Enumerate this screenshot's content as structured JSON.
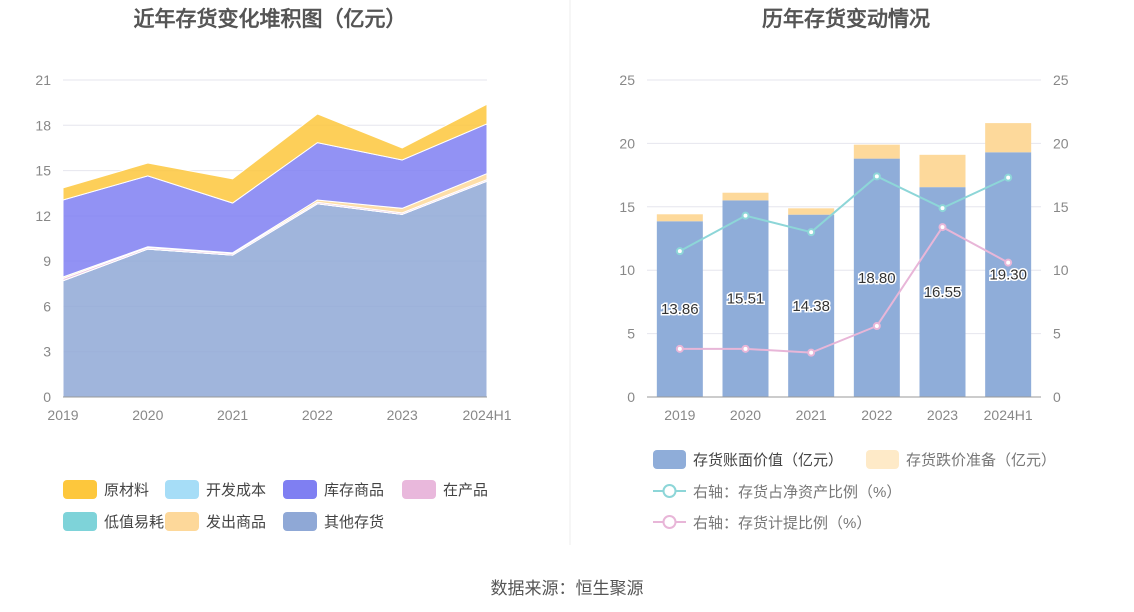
{
  "source": "数据来源：恒生聚源",
  "chart_data": [
    {
      "type": "area",
      "stacked": true,
      "title": "近年存货变化堆积图（亿元）",
      "categories": [
        "2019",
        "2020",
        "2021",
        "2022",
        "2023",
        "2024H1"
      ],
      "ylim": [
        0,
        21
      ],
      "yticks": [
        0,
        3,
        6,
        9,
        12,
        15,
        18,
        21
      ],
      "grid": true,
      "legend_position": "bottom",
      "series": [
        {
          "name": "其他存货",
          "color": "#8fa8d6",
          "values": [
            7.7,
            9.8,
            9.4,
            12.8,
            12.1,
            14.3
          ]
        },
        {
          "name": "低值易耗品",
          "color": "#7ed3d9",
          "values": [
            0.0,
            0.0,
            0.0,
            0.0,
            0.0,
            0.0
          ]
        },
        {
          "name": "开发成本",
          "color": "#a6ddf7",
          "values": [
            0.0,
            0.0,
            0.0,
            0.0,
            0.0,
            0.0
          ]
        },
        {
          "name": "在产品",
          "color": "#e9b8dc",
          "values": [
            0.15,
            0.1,
            0.1,
            0.1,
            0.1,
            0.1
          ]
        },
        {
          "name": "发出商品",
          "color": "#fdd89a",
          "values": [
            0.1,
            0.05,
            0.05,
            0.15,
            0.3,
            0.4
          ]
        },
        {
          "name": "库存商品",
          "color": "#7f7ff2",
          "values": [
            5.1,
            4.7,
            3.3,
            3.8,
            3.2,
            3.3
          ]
        },
        {
          "name": "原材料",
          "color": "#fdc73c",
          "values": [
            0.8,
            0.85,
            1.6,
            1.9,
            0.8,
            1.3
          ]
        }
      ],
      "legend_order": [
        "原材料",
        "开发成本",
        "库存商品",
        "在产品",
        "低值易耗品",
        "发出商品",
        "其他存货"
      ]
    },
    {
      "type": "bar",
      "stacked": true,
      "title": "历年存货变动情况",
      "categories": [
        "2019",
        "2020",
        "2021",
        "2022",
        "2023",
        "2024H1"
      ],
      "ylim": [
        0,
        25
      ],
      "yticks": [
        0,
        5,
        10,
        15,
        20,
        25
      ],
      "y2lim": [
        0,
        25
      ],
      "y2ticks": [
        0,
        5,
        10,
        15,
        20,
        25
      ],
      "grid": true,
      "legend_position": "bottom",
      "series": [
        {
          "name": "存货账面价值（亿元）",
          "kind": "bar",
          "color": "#8fadd9",
          "values": [
            13.86,
            15.51,
            14.38,
            18.8,
            16.55,
            19.3
          ],
          "labels": [
            "13.86",
            "15.51",
            "14.38",
            "18.80",
            "16.55",
            "19.30"
          ]
        },
        {
          "name": "存货跌价准备（亿元）",
          "kind": "bar",
          "color": "#fdd99b",
          "values": [
            0.55,
            0.6,
            0.5,
            1.1,
            2.55,
            2.3
          ]
        },
        {
          "name": "右轴：存货占净资产比例（%）",
          "kind": "line",
          "axis": "right",
          "color": "#8dd6d8",
          "values": [
            11.5,
            14.3,
            13.0,
            17.4,
            14.9,
            17.3
          ]
        },
        {
          "name": "右轴：存货计提比例（%）",
          "kind": "line",
          "axis": "right",
          "color": "#e8b6d8",
          "values": [
            3.8,
            3.8,
            3.5,
            5.6,
            13.4,
            10.6
          ]
        }
      ]
    }
  ]
}
